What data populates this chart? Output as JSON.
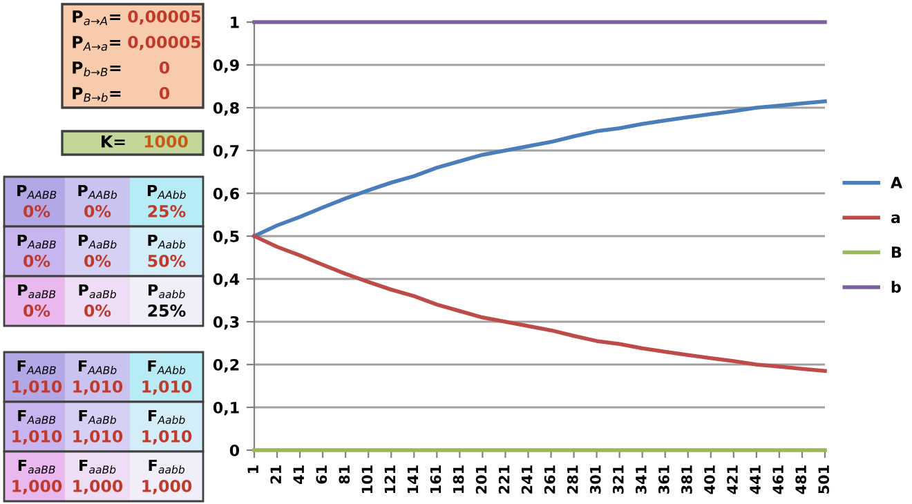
{
  "chart_data": [
    {
      "type": "other",
      "annotations": [
        "P$_{a→A}$=",
        "0,00005",
        "P$_{A→a}$=",
        "0,00005",
        "P$_{b→B}$=",
        "0",
        "P$_{B→b}$=",
        "0",
        "K=",
        "1000",
        "P$_{AABB}$",
        "0%",
        "P$_{AABb}$",
        "0%",
        "P$_{AAbb}$",
        "25%",
        "P$_{AaBB}$",
        "0%",
        "P$_{AaBb}$",
        "0%",
        "P$_{Aabb}$",
        "50%",
        "P$_{aaBB}$",
        "0%",
        "P$_{aaBb}$",
        "0%",
        "P$_{aabb}$",
        "25%",
        "F$_{AABB}$",
        "1,010",
        "F$_{AABb}$",
        "1,010",
        "F$_{AAbb}$",
        "1,010",
        "F$_{AaBB}$",
        "1,010",
        "F$_{AaBb}$",
        "1,010",
        "F$_{Aabb}$",
        "1,010",
        "F$_{aaBB}$",
        "1,000",
        "F$_{aaBb}$",
        "1,000",
        "F$_{aabb}$",
        "1,000"
      ]
    },
    {
      "type": "line",
      "x": [
        1,
        21,
        41,
        61,
        81,
        101,
        121,
        141,
        161,
        181,
        201,
        221,
        241,
        261,
        281,
        301,
        321,
        341,
        361,
        381,
        401,
        421,
        441,
        461,
        481,
        501
      ],
      "series": [
        {
          "name": "A",
          "color": "#4a7ebb",
          "values": [
            0.5,
            0.525,
            0.545,
            0.567,
            0.588,
            0.607,
            0.625,
            0.64,
            0.66,
            0.675,
            0.69,
            0.7,
            0.71,
            0.72,
            0.733,
            0.745,
            0.752,
            0.762,
            0.77,
            0.778,
            0.785,
            0.792,
            0.8,
            0.805,
            0.81,
            0.815
          ]
        },
        {
          "name": "a",
          "color": "#be4b48",
          "values": [
            0.5,
            0.475,
            0.455,
            0.433,
            0.412,
            0.393,
            0.375,
            0.36,
            0.34,
            0.325,
            0.31,
            0.3,
            0.29,
            0.28,
            0.267,
            0.255,
            0.248,
            0.238,
            0.23,
            0.222,
            0.215,
            0.208,
            0.2,
            0.195,
            0.19,
            0.185
          ]
        },
        {
          "name": "B",
          "color": "#98b954",
          "values": [
            0,
            0,
            0,
            0,
            0,
            0,
            0,
            0,
            0,
            0,
            0,
            0,
            0,
            0,
            0,
            0,
            0,
            0,
            0,
            0,
            0,
            0,
            0,
            0,
            0,
            0
          ]
        },
        {
          "name": "b",
          "color": "#7d60a0",
          "values": [
            1,
            1,
            1,
            1,
            1,
            1,
            1,
            1,
            1,
            1,
            1,
            1,
            1,
            1,
            1,
            1,
            1,
            1,
            1,
            1,
            1,
            1,
            1,
            1,
            1,
            1
          ]
        }
      ],
      "xlim": [
        1,
        501
      ],
      "xticks": [
        1,
        21,
        41,
        61,
        81,
        101,
        121,
        141,
        161,
        181,
        201,
        221,
        241,
        261,
        281,
        301,
        321,
        341,
        361,
        381,
        401,
        421,
        441,
        461,
        481,
        501
      ],
      "ylim": [
        0,
        1
      ],
      "yticks": [
        0,
        {
          "value": 0.1,
          "label": "0,1"
        },
        {
          "value": 0.2,
          "label": "0,2"
        },
        {
          "value": 0.3,
          "label": "0,3"
        },
        {
          "value": 0.4,
          "label": "0,4"
        },
        {
          "value": 0.5,
          "label": "0,5"
        },
        {
          "value": 0.6,
          "label": "0,6"
        },
        {
          "value": 0.7,
          "label": "0,7"
        },
        {
          "value": 0.8,
          "label": "0,8"
        },
        {
          "value": 0.9,
          "label": "0,9"
        },
        1
      ],
      "grid": "y",
      "legend": "right",
      "line_style": "solid",
      "marker": "none"
    }
  ]
}
